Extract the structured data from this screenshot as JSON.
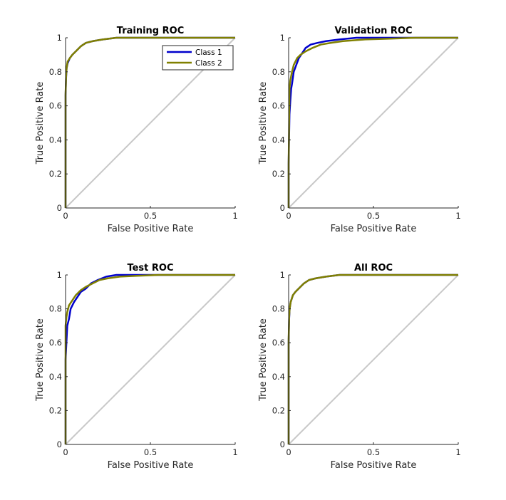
{
  "chart_data": [
    {
      "type": "line",
      "title": "Training ROC",
      "xlabel": "False Positive Rate",
      "ylabel": "True Positive Rate",
      "xlim": [
        0,
        1
      ],
      "ylim": [
        0,
        1
      ],
      "xticks": [
        "0",
        "0.5",
        "1"
      ],
      "yticks": [
        "0",
        "0.2",
        "0.4",
        "0.6",
        "0.8",
        "1"
      ],
      "grid": false,
      "legend": "top-right",
      "series": [
        {
          "name": "Class 1",
          "color": "#0000cc",
          "x": [
            0,
            0,
            0.003,
            0.006,
            0.012,
            0.025,
            0.04,
            0.06,
            0.09,
            0.12,
            0.16,
            0.22,
            0.3,
            0.45,
            1
          ],
          "y": [
            0,
            0.66,
            0.76,
            0.82,
            0.85,
            0.88,
            0.9,
            0.92,
            0.95,
            0.97,
            0.98,
            0.99,
            1,
            1,
            1
          ]
        },
        {
          "name": "Class 2",
          "color": "#808000",
          "x": [
            0,
            0,
            0.003,
            0.006,
            0.012,
            0.025,
            0.04,
            0.06,
            0.09,
            0.12,
            0.16,
            0.22,
            0.3,
            0.45,
            1
          ],
          "y": [
            0,
            0.67,
            0.77,
            0.82,
            0.86,
            0.88,
            0.9,
            0.92,
            0.95,
            0.97,
            0.98,
            0.99,
            1,
            1,
            1
          ]
        }
      ]
    },
    {
      "type": "line",
      "title": "Validation ROC",
      "xlabel": "False Positive Rate",
      "ylabel": "True Positive Rate",
      "xlim": [
        0,
        1
      ],
      "ylim": [
        0,
        1
      ],
      "xticks": [
        "0",
        "0.5",
        "1"
      ],
      "yticks": [
        "0",
        "0.2",
        "0.4",
        "0.6",
        "0.8",
        "1"
      ],
      "grid": false,
      "series": [
        {
          "name": "Class 1",
          "color": "#0000cc",
          "x": [
            0,
            0,
            0.005,
            0.01,
            0.015,
            0.02,
            0.03,
            0.045,
            0.06,
            0.08,
            0.1,
            0.13,
            0.17,
            0.22,
            0.3,
            0.4,
            0.6,
            1
          ],
          "y": [
            0,
            0.26,
            0.55,
            0.63,
            0.7,
            0.73,
            0.8,
            0.84,
            0.88,
            0.91,
            0.94,
            0.96,
            0.97,
            0.98,
            0.99,
            1,
            1,
            1
          ]
        },
        {
          "name": "Class 2",
          "color": "#808000",
          "x": [
            0,
            0,
            0.005,
            0.01,
            0.02,
            0.03,
            0.05,
            0.07,
            0.1,
            0.14,
            0.19,
            0.25,
            0.32,
            0.45,
            0.6,
            0.75,
            1
          ],
          "y": [
            0,
            0.26,
            0.7,
            0.75,
            0.8,
            0.84,
            0.88,
            0.9,
            0.92,
            0.94,
            0.96,
            0.97,
            0.98,
            0.99,
            0.995,
            1,
            1
          ]
        }
      ]
    },
    {
      "type": "line",
      "title": "Test ROC",
      "xlabel": "False Positive Rate",
      "ylabel": "True Positive Rate",
      "xlim": [
        0,
        1
      ],
      "ylim": [
        0,
        1
      ],
      "xticks": [
        "0",
        "0.5",
        "1"
      ],
      "yticks": [
        "0",
        "0.2",
        "0.4",
        "0.6",
        "0.8",
        "1"
      ],
      "grid": false,
      "series": [
        {
          "name": "Class 1",
          "color": "#0000cc",
          "x": [
            0,
            0,
            0.005,
            0.01,
            0.02,
            0.03,
            0.05,
            0.07,
            0.09,
            0.12,
            0.15,
            0.19,
            0.24,
            0.3,
            0.4,
            0.55,
            1
          ],
          "y": [
            0,
            0.5,
            0.6,
            0.7,
            0.74,
            0.8,
            0.84,
            0.87,
            0.9,
            0.92,
            0.95,
            0.97,
            0.99,
            1,
            1,
            1,
            1
          ]
        },
        {
          "name": "Class 2",
          "color": "#808000",
          "x": [
            0,
            0,
            0.005,
            0.01,
            0.02,
            0.04,
            0.06,
            0.09,
            0.12,
            0.16,
            0.2,
            0.25,
            0.32,
            0.42,
            0.55,
            1
          ],
          "y": [
            0,
            0.7,
            0.75,
            0.78,
            0.82,
            0.85,
            0.88,
            0.91,
            0.93,
            0.95,
            0.97,
            0.98,
            0.99,
            0.995,
            1,
            1
          ]
        }
      ]
    },
    {
      "type": "line",
      "title": "All ROC",
      "xlabel": "False Positive Rate",
      "ylabel": "True Positive Rate",
      "xlim": [
        0,
        1
      ],
      "ylim": [
        0,
        1
      ],
      "xticks": [
        "0",
        "0.5",
        "1"
      ],
      "yticks": [
        "0",
        "0.2",
        "0.4",
        "0.6",
        "0.8",
        "1"
      ],
      "grid": false,
      "series": [
        {
          "name": "Class 1",
          "color": "#0000cc",
          "x": [
            0,
            0,
            0.003,
            0.006,
            0.012,
            0.025,
            0.04,
            0.06,
            0.09,
            0.12,
            0.16,
            0.22,
            0.3,
            0.45,
            1
          ],
          "y": [
            0,
            0.6,
            0.74,
            0.8,
            0.84,
            0.88,
            0.9,
            0.92,
            0.95,
            0.97,
            0.98,
            0.99,
            1,
            1,
            1
          ]
        },
        {
          "name": "Class 2",
          "color": "#808000",
          "x": [
            0,
            0,
            0.003,
            0.006,
            0.012,
            0.025,
            0.04,
            0.06,
            0.09,
            0.12,
            0.16,
            0.22,
            0.3,
            0.45,
            1
          ],
          "y": [
            0,
            0.62,
            0.75,
            0.8,
            0.84,
            0.88,
            0.9,
            0.92,
            0.95,
            0.97,
            0.98,
            0.99,
            1,
            1,
            1
          ]
        }
      ]
    }
  ],
  "style": {
    "diagonal_color": "#c8c8c8",
    "axis_color": "#262626"
  }
}
